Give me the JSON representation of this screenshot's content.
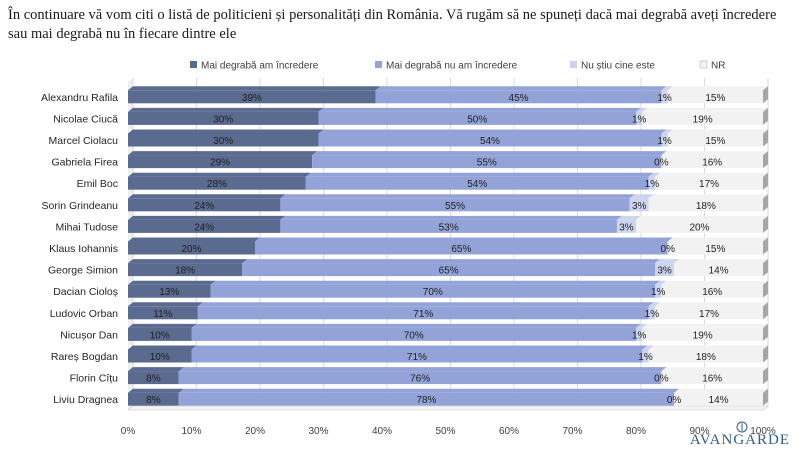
{
  "title": "În continuare vă vom citi o listă de politicieni și personalități din România. Vă rugăm să ne spuneți dacă mai degrabă aveți încredere sau mai degrabă nu în fiecare dintre ele",
  "brand": "AVANGARDE",
  "chart_data": {
    "type": "bar",
    "orientation": "horizontal",
    "stacked": true,
    "style": "3d",
    "categories": [
      "Alexandru Rafila",
      "Nicolae Ciucă",
      "Marcel Ciolacu",
      "Gabriela Firea",
      "Emil Boc",
      "Sorin Grindeanu",
      "Mihai Tudose",
      "Klaus Iohannis",
      "George Simion",
      "Dacian Cioloș",
      "Ludovic Orban",
      "Nicușor Dan",
      "Rareș Bogdan",
      "Florin Cîțu",
      "Liviu Dragnea"
    ],
    "series": [
      {
        "name": "Mai degrabă am încredere",
        "color": "#5b6a8f",
        "values": [
          39,
          30,
          30,
          29,
          28,
          24,
          24,
          20,
          18,
          13,
          11,
          10,
          10,
          8,
          8
        ]
      },
      {
        "name": "Mai degrabă nu am încredere",
        "color": "#93a3d8",
        "values": [
          45,
          50,
          54,
          55,
          54,
          55,
          53,
          65,
          65,
          70,
          71,
          70,
          71,
          76,
          78
        ]
      },
      {
        "name": "Nu știu cine este",
        "color": "#cdd5ee",
        "values": [
          1,
          1,
          1,
          0,
          1,
          3,
          3,
          0,
          3,
          1,
          1,
          1,
          1,
          0,
          0
        ]
      },
      {
        "name": "NR",
        "color": "#f2f2f2",
        "values": [
          15,
          19,
          15,
          16,
          17,
          18,
          20,
          15,
          14,
          16,
          17,
          19,
          18,
          16,
          14
        ]
      }
    ],
    "xlim": [
      0,
      100
    ],
    "x_ticks": [
      "0%",
      "10%",
      "20%",
      "30%",
      "40%",
      "50%",
      "60%",
      "70%",
      "80%",
      "90%",
      "100%"
    ],
    "value_suffix": "%",
    "legend_position": "top",
    "grid": true
  }
}
